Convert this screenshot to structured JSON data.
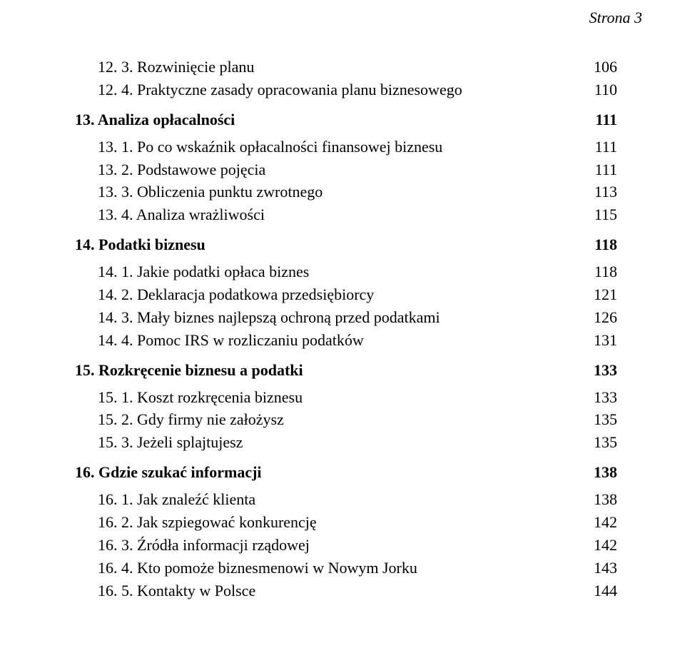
{
  "pageLabel": "Strona 3",
  "entries": [
    {
      "text": "12. 3. Rozwinięcie planu",
      "page": "106",
      "indent": 1,
      "bold": false,
      "gapAbove": false
    },
    {
      "text": "12. 4. Praktyczne zasady opracowania planu biznesowego",
      "page": "110",
      "indent": 1,
      "bold": false,
      "gapAbove": false
    },
    {
      "text": "13. Analiza opłacalności",
      "page": "111",
      "indent": 0,
      "bold": true,
      "gapAbove": true,
      "gapBelow": true
    },
    {
      "text": "13. 1. Po co wskaźnik opłacalności finansowej biznesu",
      "page": "111",
      "indent": 1,
      "bold": false,
      "gapAbove": false
    },
    {
      "text": "13. 2. Podstawowe pojęcia",
      "page": "111",
      "indent": 1,
      "bold": false,
      "gapAbove": false
    },
    {
      "text": "13. 3. Obliczenia punktu zwrotnego",
      "page": "113",
      "indent": 1,
      "bold": false,
      "gapAbove": false
    },
    {
      "text": "13. 4. Analiza wrażliwości",
      "page": "115",
      "indent": 1,
      "bold": false,
      "gapAbove": false
    },
    {
      "text": "14. Podatki biznesu",
      "page": "118",
      "indent": 0,
      "bold": true,
      "gapAbove": true,
      "gapBelow": true
    },
    {
      "text": "14. 1. Jakie podatki opłaca biznes",
      "page": "118",
      "indent": 1,
      "bold": false,
      "gapAbove": false
    },
    {
      "text": "14. 2. Deklaracja podatkowa przedsiębiorcy",
      "page": "121",
      "indent": 1,
      "bold": false,
      "gapAbove": false
    },
    {
      "text": "14. 3. Mały biznes najlepszą ochroną przed podatkami",
      "page": "126",
      "indent": 1,
      "bold": false,
      "gapAbove": false
    },
    {
      "text": "14. 4. Pomoc IRS w rozliczaniu podatków",
      "page": "131",
      "indent": 1,
      "bold": false,
      "gapAbove": false
    },
    {
      "text": "15. Rozkręcenie biznesu a podatki",
      "page": "133",
      "indent": 0,
      "bold": true,
      "gapAbove": true,
      "gapBelow": true
    },
    {
      "text": "15. 1. Koszt rozkręcenia biznesu",
      "page": "133",
      "indent": 1,
      "bold": false,
      "gapAbove": false
    },
    {
      "text": "15. 2. Gdy firmy nie założysz",
      "page": "135",
      "indent": 1,
      "bold": false,
      "gapAbove": false
    },
    {
      "text": "15. 3. Jeżeli splajtujesz",
      "page": "135",
      "indent": 1,
      "bold": false,
      "gapAbove": false
    },
    {
      "text": "16. Gdzie szukać informacji",
      "page": "138",
      "indent": 0,
      "bold": true,
      "gapAbove": true,
      "gapBelow": true
    },
    {
      "text": "16. 1. Jak znaleźć klienta",
      "page": "138",
      "indent": 1,
      "bold": false,
      "gapAbove": false
    },
    {
      "text": "16. 2. Jak szpiegować konkurencję",
      "page": "142",
      "indent": 1,
      "bold": false,
      "gapAbove": false
    },
    {
      "text": "16. 3. Źródła informacji rządowej",
      "page": "142",
      "indent": 1,
      "bold": false,
      "gapAbove": false
    },
    {
      "text": "16. 4. Kto pomoże biznesmenowi w Nowym Jorku",
      "page": "143",
      "indent": 1,
      "bold": false,
      "gapAbove": false
    },
    {
      "text": "16. 5. Kontakty w Polsce",
      "page": "144",
      "indent": 1,
      "bold": false,
      "gapAbove": false
    }
  ]
}
